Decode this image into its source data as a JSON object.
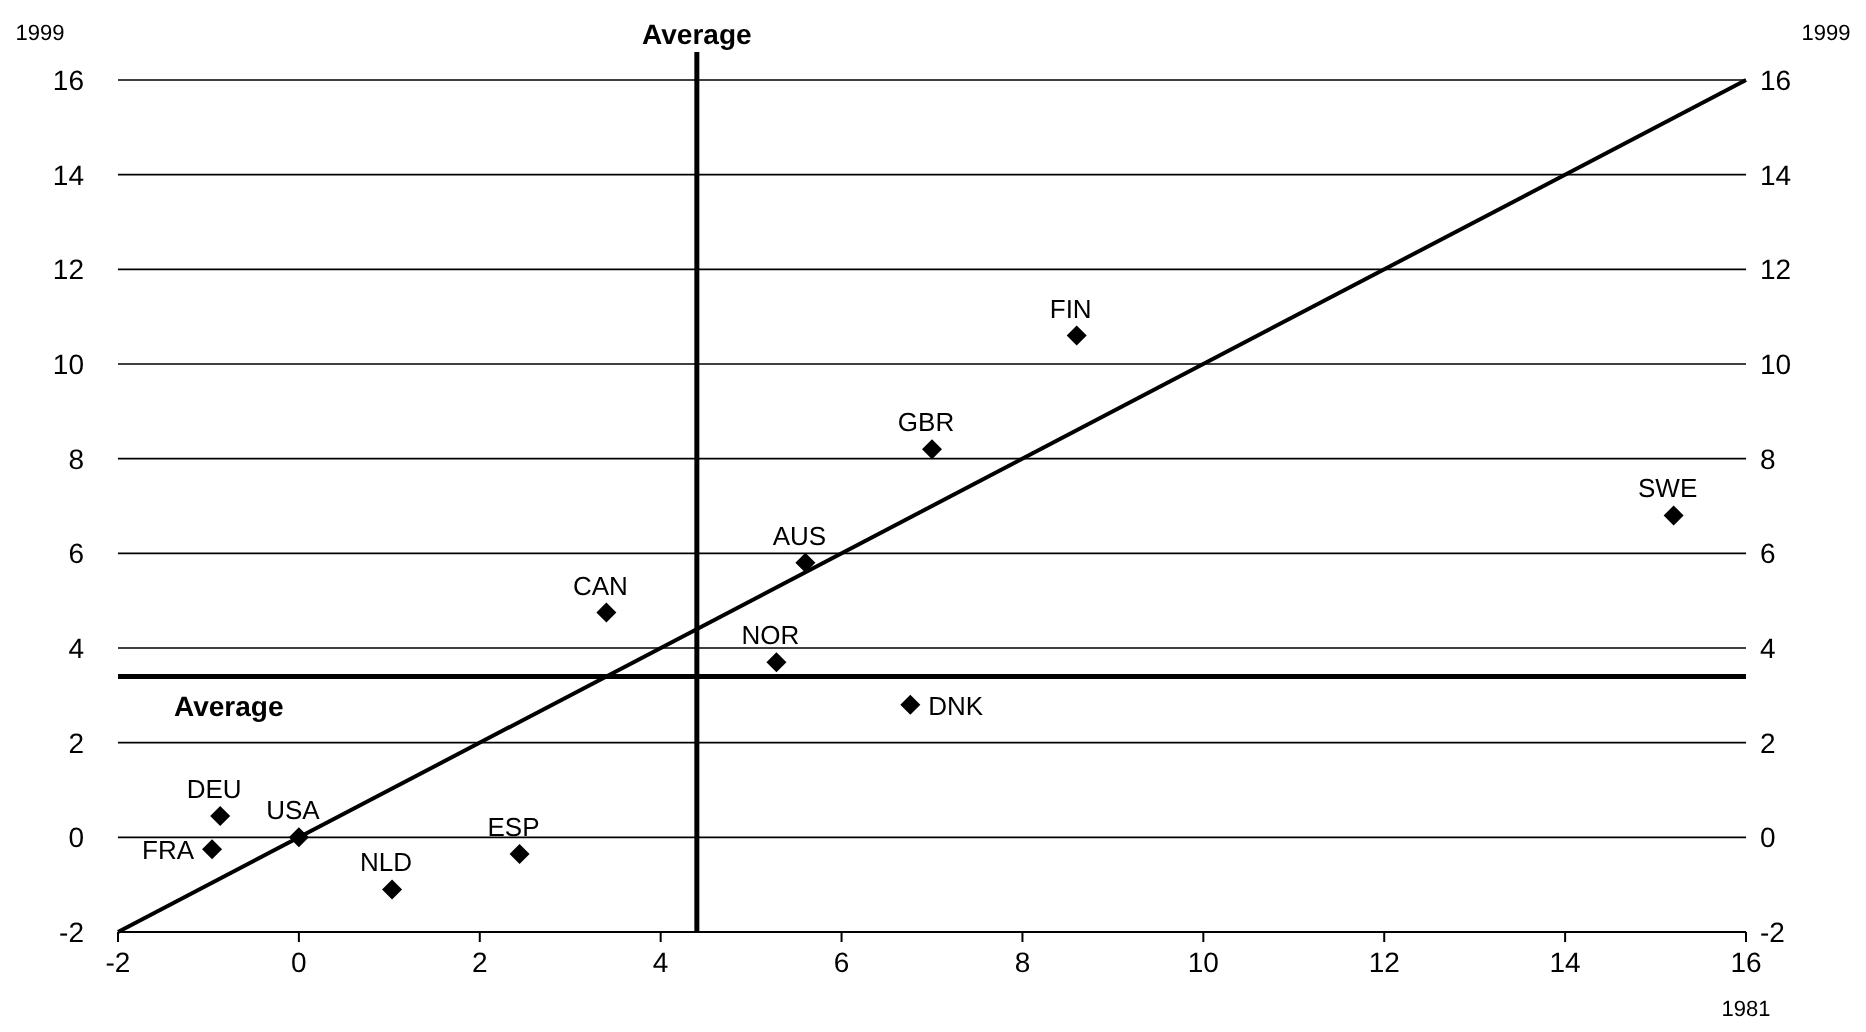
{
  "chart_data": {
    "type": "scatter",
    "xlabel": "1981",
    "ylabel": "1999",
    "y2label": "1999",
    "series": [
      {
        "type": "scatter",
        "color": "#000000",
        "marker": "diamond",
        "x": [
          8.6,
          7.0,
          15.2,
          5.6,
          3.4,
          5.28,
          6.76,
          -0.87,
          0,
          -0.96,
          2.44,
          1.03
        ],
        "values": [
          10.6,
          8.2,
          6.8,
          5.8,
          4.75,
          3.7,
          2.8,
          0.45,
          0,
          -0.25,
          -0.35,
          -1.1
        ]
      },
      {
        "type": "line",
        "color": "#000000",
        "x": [
          -2,
          16
        ],
        "values": [
          -2,
          16
        ]
      }
    ],
    "annotations": [
      {
        "text": "FIN",
        "x": 8.6,
        "y": 10.6
      },
      {
        "text": "GBR",
        "x": 7.0,
        "y": 8.2
      },
      {
        "text": "SWE",
        "x": 15.2,
        "y": 6.8
      },
      {
        "text": "AUS",
        "x": 5.6,
        "y": 5.8
      },
      {
        "text": "CAN",
        "x": 3.4,
        "y": 4.75
      },
      {
        "text": "NOR",
        "x": 5.28,
        "y": 3.7
      },
      {
        "text": "DNK",
        "x": 6.76,
        "y": 2.8
      },
      {
        "text": "DEU",
        "x": -0.87,
        "y": 0.45
      },
      {
        "text": "USA",
        "x": 0,
        "y": 0
      },
      {
        "text": "FRA",
        "x": -0.96,
        "y": -0.25
      },
      {
        "text": "ESP",
        "x": 2.44,
        "y": -0.35
      },
      {
        "text": "NLD",
        "x": 1.03,
        "y": -1.1
      }
    ],
    "ref_lines": [
      {
        "axis": "x",
        "value": 4.4,
        "label": "Average"
      },
      {
        "axis": "y",
        "value": 3.4,
        "label": "Average"
      }
    ],
    "xlim": [
      -2,
      16
    ],
    "xticks": [
      -2,
      0,
      2,
      4,
      6,
      8,
      10,
      12,
      14,
      16
    ],
    "ylim": [
      -2,
      16
    ],
    "yticks": [
      -2,
      0,
      2,
      4,
      6,
      8,
      10,
      12,
      14,
      16
    ],
    "y2lim": [
      -2,
      16
    ],
    "y2ticks": [
      -2,
      0,
      2,
      4,
      6,
      8,
      10,
      12,
      14,
      16
    ],
    "grid": "y"
  }
}
